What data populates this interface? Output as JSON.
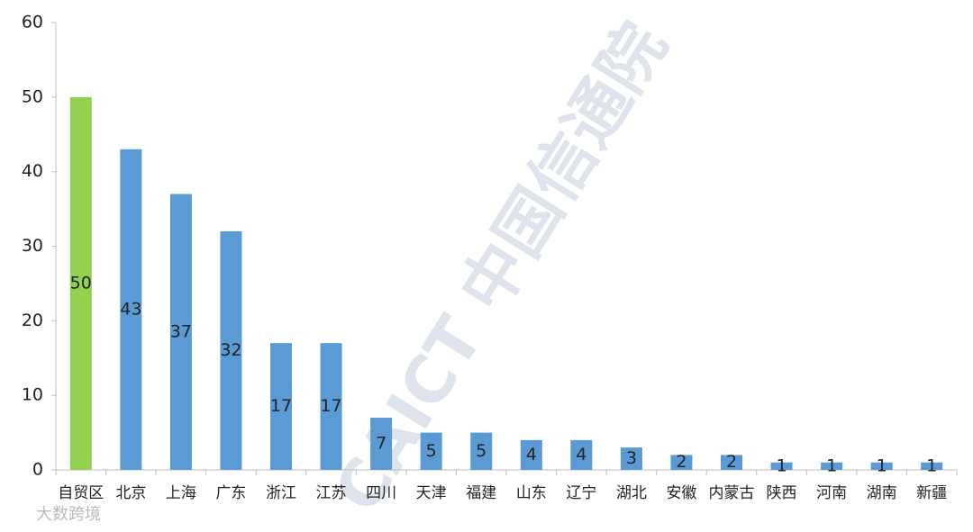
{
  "chart_data": {
    "type": "bar",
    "categories": [
      "自贸区",
      "北京",
      "上海",
      "广东",
      "浙江",
      "江苏",
      "四川",
      "天津",
      "福建",
      "山东",
      "辽宁",
      "湖北",
      "安徽",
      "内蒙古",
      "陕西",
      "河南",
      "湖南",
      "新疆"
    ],
    "values": [
      50,
      43,
      37,
      32,
      17,
      17,
      7,
      5,
      5,
      4,
      4,
      3,
      2,
      2,
      1,
      1,
      1,
      1
    ],
    "colors": [
      "#92d050",
      "#5b9bd5",
      "#5b9bd5",
      "#5b9bd5",
      "#5b9bd5",
      "#5b9bd5",
      "#5b9bd5",
      "#5b9bd5",
      "#5b9bd5",
      "#5b9bd5",
      "#5b9bd5",
      "#5b9bd5",
      "#5b9bd5",
      "#5b9bd5",
      "#5b9bd5",
      "#5b9bd5",
      "#5b9bd5",
      "#5b9bd5"
    ],
    "ylim": [
      0,
      60
    ],
    "yticks": [
      0,
      10,
      20,
      30,
      40,
      50,
      60
    ],
    "grid": false,
    "watermark": "CAICT 中国信通院",
    "credit": "大数跨境"
  }
}
